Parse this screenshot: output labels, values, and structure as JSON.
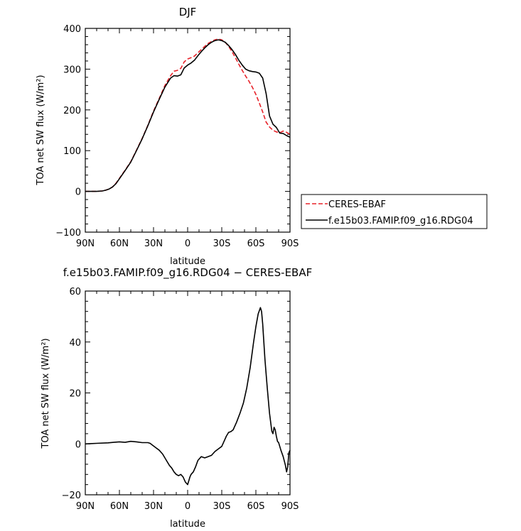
{
  "chart_data": [
    {
      "type": "line",
      "title": "DJF",
      "xlabel": "latitude",
      "ylabel": "TOA net SW flux (W/m²)",
      "xlim": [
        90,
        -90
      ],
      "ylim": [
        -100,
        400
      ],
      "xticks": [
        90,
        60,
        30,
        0,
        -30,
        -60,
        -90
      ],
      "xtick_labels": [
        "90N",
        "60N",
        "30N",
        "0",
        "30S",
        "60S",
        "90S"
      ],
      "yticks": [
        -100,
        0,
        100,
        200,
        300,
        400
      ],
      "ytick_labels": [
        "−100",
        "0",
        "100",
        "200",
        "300",
        "400"
      ],
      "grid": false,
      "legend": "right",
      "series": [
        {
          "name": "CERES-EBAF",
          "color": "#e8232a",
          "dash": "dashed",
          "x": [
            90,
            85,
            80,
            75,
            72,
            69,
            66,
            63,
            60,
            55,
            50,
            45,
            40,
            35,
            30,
            25,
            20,
            15,
            12,
            9,
            6,
            3,
            0,
            -3,
            -6,
            -9,
            -12,
            -15,
            -18,
            -21,
            -24,
            -27,
            -30,
            -33,
            -36,
            -39,
            -42,
            -45,
            -48,
            -51,
            -54,
            -57,
            -60,
            -63,
            -66,
            -69,
            -72,
            -75,
            -78,
            -81,
            -84,
            -87,
            -90
          ],
          "y": [
            0,
            0,
            0,
            1,
            3,
            6,
            11,
            20,
            32,
            52,
            73,
            101,
            130,
            162,
            197,
            228,
            260,
            284,
            295,
            297,
            302,
            318,
            325,
            328,
            332,
            340,
            348,
            356,
            363,
            368,
            372,
            374,
            372,
            366,
            356,
            343,
            328,
            312,
            297,
            283,
            270,
            255,
            238,
            217,
            195,
            170,
            158,
            150,
            146,
            144,
            148,
            145,
            140
          ]
        },
        {
          "name": "f.e15b03.FAMIP.f09_g16.RDG04",
          "color": "#000000",
          "dash": "solid",
          "x": [
            90,
            85,
            80,
            75,
            72,
            69,
            66,
            63,
            60,
            55,
            50,
            45,
            40,
            35,
            30,
            25,
            20,
            15,
            12,
            9,
            6,
            3,
            0,
            -3,
            -6,
            -9,
            -12,
            -15,
            -18,
            -21,
            -24,
            -27,
            -30,
            -33,
            -36,
            -39,
            -42,
            -45,
            -48,
            -51,
            -54,
            -57,
            -60,
            -63,
            -66,
            -69,
            -72,
            -75,
            -78,
            -81,
            -84,
            -87,
            -90
          ],
          "y": [
            0,
            0,
            0,
            1,
            3,
            6,
            11,
            19,
            31,
            51,
            72,
            100,
            129,
            161,
            195,
            226,
            256,
            278,
            284,
            283,
            286,
            303,
            310,
            315,
            322,
            333,
            343,
            352,
            360,
            366,
            370,
            372,
            370,
            366,
            358,
            348,
            336,
            322,
            310,
            300,
            296,
            294,
            293,
            290,
            278,
            240,
            185,
            165,
            157,
            143,
            142,
            137,
            133
          ]
        }
      ]
    },
    {
      "type": "line",
      "title": "f.e15b03.FAMIP.f09_g16.RDG04 − CERES-EBAF",
      "xlabel": "latitude",
      "ylabel": "TOA net SW flux (W/m²)",
      "xlim": [
        90,
        -90
      ],
      "ylim": [
        -20,
        60
      ],
      "xticks": [
        90,
        60,
        30,
        0,
        -30,
        -60,
        -90
      ],
      "xtick_labels": [
        "90N",
        "60N",
        "30N",
        "0",
        "30S",
        "60S",
        "90S"
      ],
      "yticks": [
        -20,
        0,
        20,
        40,
        60
      ],
      "ytick_labels": [
        "−20",
        "0",
        "20",
        "40",
        "60"
      ],
      "grid": false,
      "series": [
        {
          "color": "#000000",
          "dash": "solid",
          "x": [
            90,
            80,
            70,
            65,
            60,
            55,
            50,
            45,
            40,
            35,
            33,
            31,
            28,
            25,
            22,
            20,
            18,
            16,
            14,
            12,
            10,
            8,
            6,
            4,
            2,
            0,
            -1,
            -2,
            -3,
            -5,
            -7,
            -9,
            -12,
            -15,
            -18,
            -21,
            -24,
            -27,
            -30,
            -32,
            -34,
            -36,
            -38,
            -40,
            -43,
            -46,
            -49,
            -52,
            -55,
            -58,
            -60,
            -62,
            -64,
            -65,
            -66,
            -67,
            -68,
            -70,
            -72,
            -74,
            -75,
            -76,
            -77,
            -78,
            -79,
            -80,
            -81,
            -82,
            -84,
            -86,
            -87,
            -88,
            -89,
            -90
          ],
          "y": [
            0,
            0.2,
            0.4,
            0.6,
            0.8,
            0.6,
            1.0,
            0.8,
            0.5,
            0.5,
            0.2,
            -0.5,
            -1.5,
            -2.5,
            -4.0,
            -5.5,
            -7.0,
            -8.5,
            -9.5,
            -11.0,
            -12.0,
            -12.5,
            -12.0,
            -13.0,
            -15.0,
            -16.0,
            -14.5,
            -13.0,
            -12.0,
            -11.0,
            -9.0,
            -6.5,
            -5.0,
            -5.5,
            -5.0,
            -4.5,
            -3.0,
            -2.0,
            -1.0,
            1.0,
            3.0,
            4.5,
            4.8,
            5.5,
            8.5,
            12.0,
            16.0,
            22.0,
            30.0,
            40.0,
            46.0,
            51.0,
            53.5,
            52.0,
            47.0,
            40.0,
            33.0,
            22.0,
            12.0,
            5.0,
            4.0,
            6.5,
            5.5,
            3.0,
            1.0,
            0.5,
            -1.0,
            -2.5,
            -5.0,
            -8.5,
            -11.0,
            -9.0,
            -3.5,
            -2.5
          ]
        }
      ]
    }
  ]
}
